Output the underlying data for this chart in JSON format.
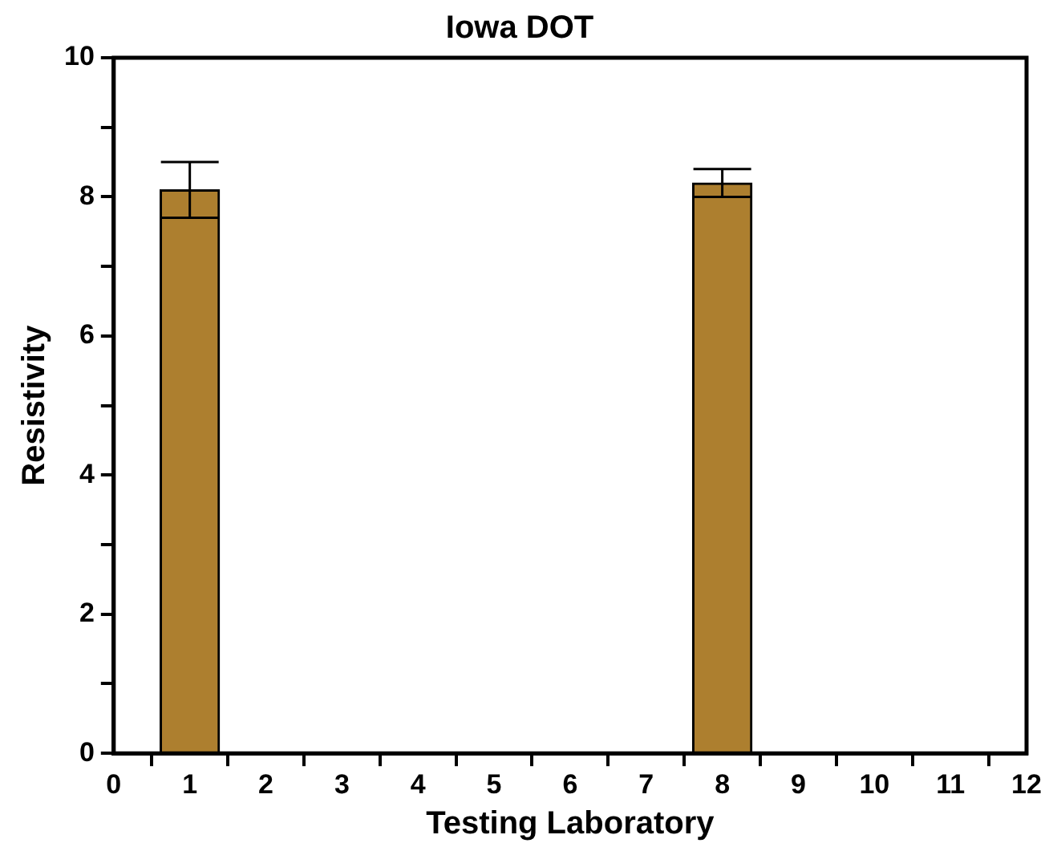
{
  "chart_data": {
    "type": "bar",
    "title": "Iowa DOT",
    "xlabel": "Testing Laboratory",
    "ylabel": "Resistivity",
    "x": [
      1,
      8
    ],
    "values": [
      8.1,
      8.2
    ],
    "errors": [
      0.4,
      0.2
    ],
    "color": "#ad7f2f",
    "xlim": [
      0,
      12
    ],
    "xticks": [
      0,
      1,
      2,
      3,
      4,
      5,
      6,
      7,
      8,
      9,
      10,
      11,
      12
    ],
    "ylim": [
      0,
      10
    ],
    "yticks": [
      0,
      {
        "value": 1,
        "label": null
      },
      2,
      {
        "value": 3,
        "label": null
      },
      4,
      {
        "value": 5,
        "label": null
      },
      6,
      {
        "value": 7,
        "label": null
      },
      8,
      {
        "value": 9,
        "label": null
      },
      10
    ],
    "grid": false,
    "legend": false
  }
}
